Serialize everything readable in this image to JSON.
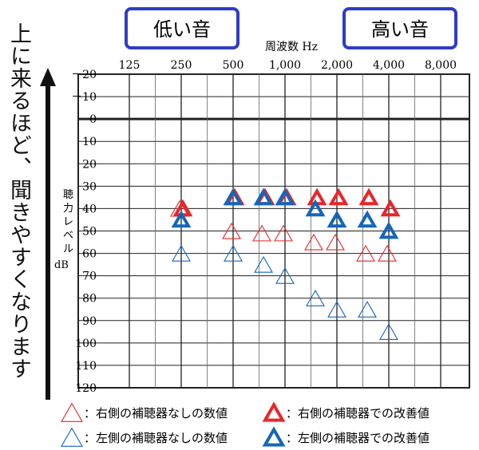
{
  "side_caption": "上に来るほど、聞きやすくなります",
  "boxes": {
    "low": "低い音",
    "high": "高い音"
  },
  "colors": {
    "red": "#e8262a",
    "blue": "#1566b9",
    "box_border": "#2f3cc7",
    "grid": "#222222"
  },
  "chart_data": {
    "type": "scatter",
    "title": "",
    "xlabel": "周波数 Hz",
    "ylabel": "聴力レベル dB",
    "x_scale": "log2",
    "x_ticks": [
      125,
      250,
      500,
      1000,
      2000,
      4000,
      8000
    ],
    "x_tick_labels": [
      "125",
      "250",
      "500",
      "1,000",
      "2,000",
      "4,000",
      "8,000"
    ],
    "ylim": [
      -20,
      120
    ],
    "y_inverted": true,
    "y_ticks": [
      -20,
      -10,
      0,
      10,
      20,
      30,
      40,
      50,
      60,
      70,
      80,
      90,
      100,
      110,
      120
    ],
    "y_tick_labels": [
      "－20",
      "－10",
      "0",
      "10",
      "20",
      "30",
      "40",
      "50",
      "60",
      "70",
      "80",
      "90",
      "100",
      "110",
      "120"
    ],
    "grid": true,
    "series": [
      {
        "name": "右側の補聴器なしの数値",
        "color": "#e8262a",
        "style": "outline",
        "points": [
          [
            250,
            40
          ],
          [
            500,
            50
          ],
          [
            750,
            51
          ],
          [
            1000,
            51
          ],
          [
            1500,
            55
          ],
          [
            2000,
            55
          ],
          [
            3000,
            60
          ],
          [
            4000,
            60
          ]
        ]
      },
      {
        "name": "左側の補聴器なしの数値",
        "color": "#1566b9",
        "style": "outline",
        "points": [
          [
            250,
            60
          ],
          [
            500,
            60
          ],
          [
            750,
            65
          ],
          [
            1000,
            70
          ],
          [
            1500,
            80
          ],
          [
            2000,
            85
          ],
          [
            3000,
            85
          ],
          [
            4000,
            95
          ]
        ]
      },
      {
        "name": "右側の補聴器での改善値",
        "color": "#e8262a",
        "style": "bold",
        "points": [
          [
            250,
            40
          ],
          [
            500,
            35
          ],
          [
            750,
            35
          ],
          [
            1000,
            35
          ],
          [
            1500,
            35
          ],
          [
            2000,
            35
          ],
          [
            3000,
            35
          ],
          [
            4000,
            40
          ]
        ]
      },
      {
        "name": "左側の補聴器での改善値",
        "color": "#1566b9",
        "style": "bold",
        "points": [
          [
            250,
            45
          ],
          [
            500,
            35
          ],
          [
            750,
            35
          ],
          [
            1000,
            35
          ],
          [
            1500,
            40
          ],
          [
            2000,
            45
          ],
          [
            3000,
            45
          ],
          [
            4000,
            50
          ]
        ]
      }
    ]
  }
}
